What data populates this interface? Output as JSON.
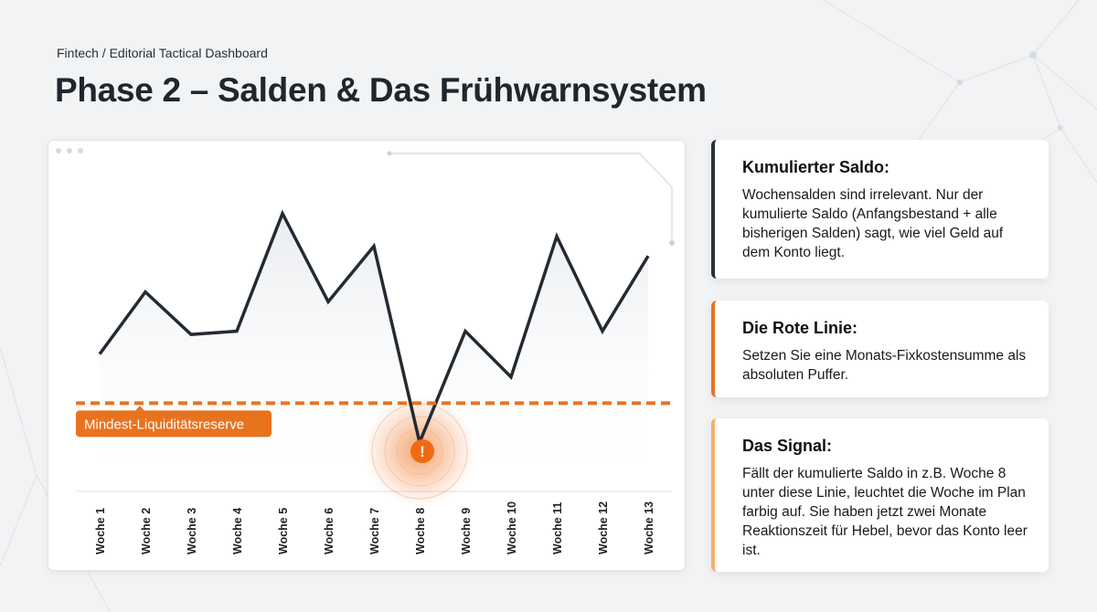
{
  "breadcrumb": "Fintech / Editorial Tactical Dashboard",
  "title": "Phase 2 – Salden & Das Frühwarnsystem",
  "colors": {
    "line": "#232a31",
    "reserve": "#e8731f",
    "alert": "#f06a14",
    "card1_accent": "#2a3038",
    "card2_accent": "#e8731f",
    "card3_accent": "#f0b36e"
  },
  "chart_data": {
    "type": "line",
    "categories": [
      "Woche 1",
      "Woche 2",
      "Woche 3",
      "Woche 4",
      "Woche 5",
      "Woche 6",
      "Woche 7",
      "Woche 8",
      "Woche 9",
      "Woche 10",
      "Woche 11",
      "Woche 12",
      "Woche 13"
    ],
    "values": [
      42,
      61,
      48,
      49,
      85,
      58,
      75,
      15,
      49,
      35,
      78,
      49,
      72
    ],
    "ylim": [
      0,
      100
    ],
    "y_axis_shown": false,
    "grid": false,
    "reserve_line": {
      "value": 27,
      "label": "Mindest-Liquiditätsreserve"
    },
    "alert": {
      "category": "Woche 8",
      "symbol": "!",
      "icon": "warning-icon"
    }
  },
  "cards": [
    {
      "title": "Kumulierter Saldo:",
      "text": "Wochensalden sind irrelevant. Nur der kumulierte Saldo (Anfangsbestand + alle bisherigen Salden) sagt, wie viel Geld auf dem Konto liegt."
    },
    {
      "title": "Die Rote Linie:",
      "text": "Setzen Sie eine Monats-Fixkostensumme als absoluten Puffer."
    },
    {
      "title": "Das Signal:",
      "text": "Fällt der kumulierte Saldo in z.B. Woche 8 unter diese Linie, leuchtet die Woche im Plan farbig auf. Sie haben jetzt zwei Monate Reaktionszeit für Hebel, bevor das Konto leer ist."
    }
  ]
}
